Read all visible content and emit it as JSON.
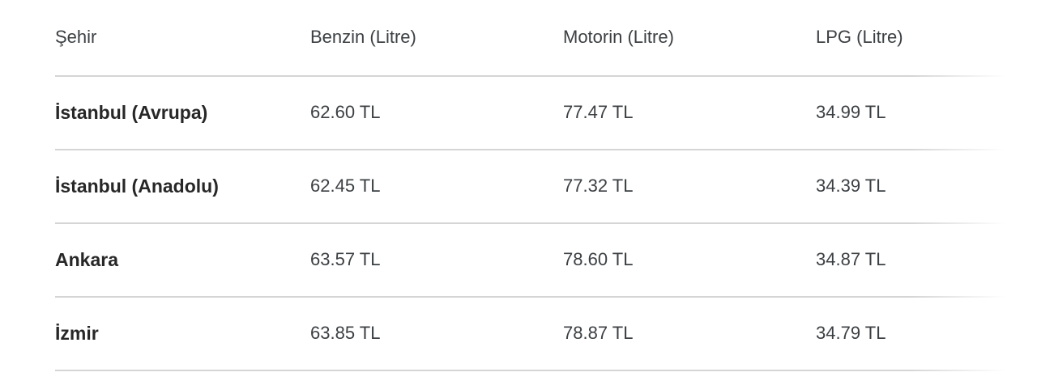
{
  "table": {
    "columns": [
      {
        "label": "Şehir"
      },
      {
        "label": "Benzin (Litre)"
      },
      {
        "label": "Motorin (Litre)"
      },
      {
        "label": "LPG (Litre)"
      }
    ],
    "rows": [
      {
        "city": "İstanbul (Avrupa)",
        "benzin": "62.60 TL",
        "motorin": "77.47 TL",
        "lpg": "34.99 TL"
      },
      {
        "city": "İstanbul (Anadolu)",
        "benzin": "62.45 TL",
        "motorin": "77.32 TL",
        "lpg": "34.39 TL"
      },
      {
        "city": "Ankara",
        "benzin": "63.57 TL",
        "motorin": "78.60 TL",
        "lpg": "34.87 TL"
      },
      {
        "city": "İzmir",
        "benzin": "63.85 TL",
        "motorin": "78.87 TL",
        "lpg": "34.79 TL"
      }
    ]
  },
  "chart_data": {
    "type": "table",
    "columns": [
      "Şehir",
      "Benzin (Litre)",
      "Motorin (Litre)",
      "LPG (Litre)"
    ],
    "rows": [
      [
        "İstanbul (Avrupa)",
        "62.60 TL",
        "77.47 TL",
        "34.99 TL"
      ],
      [
        "İstanbul (Anadolu)",
        "62.45 TL",
        "77.32 TL",
        "34.39 TL"
      ],
      [
        "Ankara",
        "63.57 TL",
        "78.60 TL",
        "34.87 TL"
      ],
      [
        "İzmir",
        "63.85 TL",
        "78.87 TL",
        "34.79 TL"
      ]
    ]
  },
  "colors": {
    "background": "#ffffff",
    "divider": "#d5d5d5",
    "header_text": "#3c4043",
    "city_text": "#272727",
    "value_text": "#3c4043"
  }
}
